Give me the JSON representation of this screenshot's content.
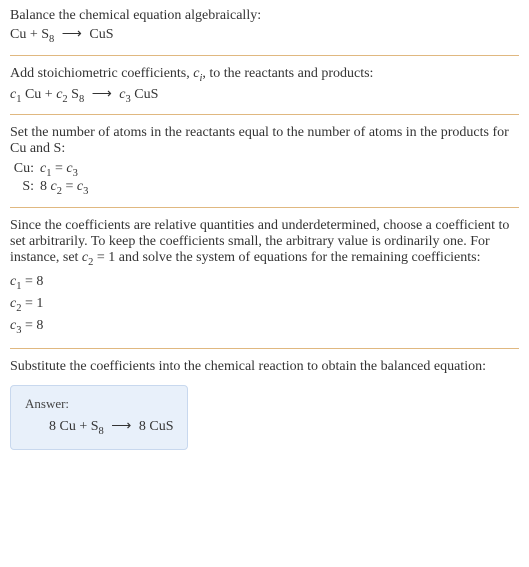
{
  "section1": {
    "title": "Balance the chemical equation algebraically:",
    "equation_html": "Cu + S<sub>8</sub> <span class='arrow'>⟶</span> CuS"
  },
  "section2": {
    "title_html": "Add stoichiometric coefficients, <i>c<sub>i</sub></i>, to the reactants and products:",
    "equation_html": "<i>c</i><sub>1</sub> Cu + <i>c</i><sub>2</sub> S<sub>8</sub> <span class='arrow'>⟶</span> <i>c</i><sub>3</sub> CuS"
  },
  "section3": {
    "title": "Set the number of atoms in the reactants equal to the number of atoms in the products for Cu and S:",
    "rows": [
      {
        "label": "Cu:",
        "eq_html": "<i>c</i><sub>1</sub> = <i>c</i><sub>3</sub>"
      },
      {
        "label": "S:",
        "eq_html": "8 <i>c</i><sub>2</sub> = <i>c</i><sub>3</sub>"
      }
    ]
  },
  "section4": {
    "title_html": "Since the coefficients are relative quantities and underdetermined, choose a coefficient to set arbitrarily. To keep the coefficients small, the arbitrary value is ordinarily one. For instance, set <i>c</i><sub>2</sub> = 1 and solve the system of equations for the remaining coefficients:",
    "coeffs_html": [
      "<i>c</i><sub>1</sub> = 8",
      "<i>c</i><sub>2</sub> = 1",
      "<i>c</i><sub>3</sub> = 8"
    ]
  },
  "section5": {
    "title": "Substitute the coefficients into the chemical reaction to obtain the balanced equation:"
  },
  "answer": {
    "label": "Answer:",
    "equation_html": "8 Cu + S<sub>8</sub> <span class='arrow'>⟶</span> 8 CuS",
    "box_bg": "#e8f0fa",
    "box_border": "#c8d8ee"
  },
  "divider_color": "#e0b880"
}
